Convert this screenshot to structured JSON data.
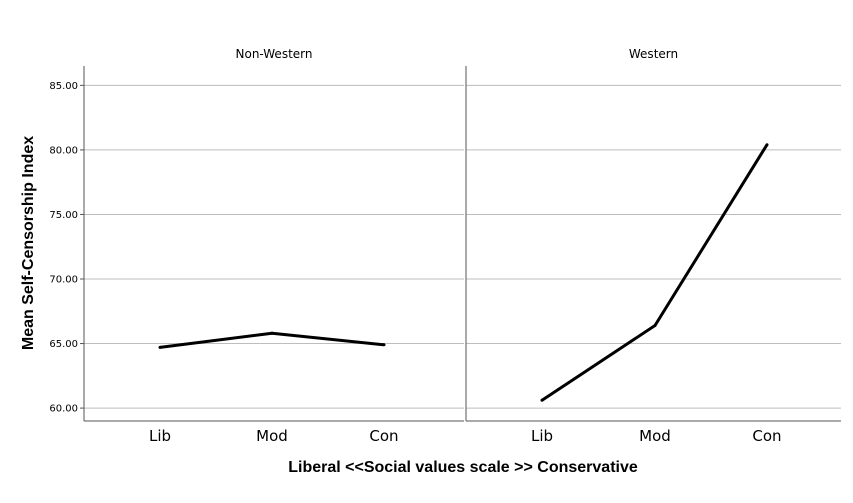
{
  "chart_data": {
    "type": "line",
    "panels": [
      {
        "title": "Non-Western",
        "categories": [
          "Lib",
          "Mod",
          "Con"
        ],
        "series": [
          {
            "values": [
              64.7,
              65.8,
              64.9
            ]
          }
        ]
      },
      {
        "title": "Western",
        "categories": [
          "Lib",
          "Mod",
          "Con"
        ],
        "series": [
          {
            "values": [
              60.6,
              66.4,
              80.4
            ]
          }
        ]
      }
    ],
    "xlabel": "Liberal <<Social values scale >> Conservative",
    "ylabel": "Mean Self-Censorship Index",
    "yticks": [
      "60.00",
      "65.00",
      "70.00",
      "75.00",
      "80.00",
      "85.00"
    ],
    "ylim": [
      59,
      86.5
    ],
    "grid": true,
    "line_color": "#000000",
    "grid_color": "#bdbdbd"
  }
}
